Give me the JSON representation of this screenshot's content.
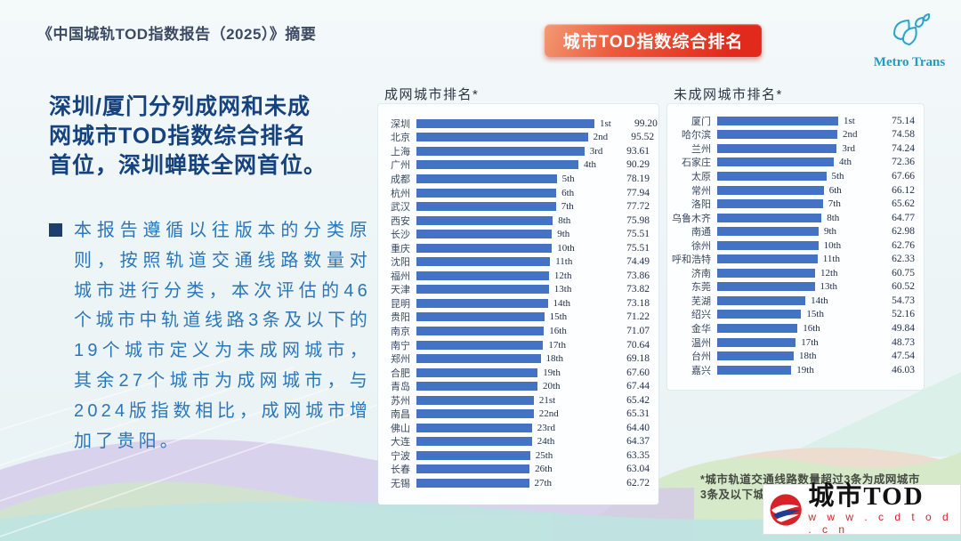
{
  "page": {
    "title": "《中国城轨TOD指数报告（2025）》摘要",
    "badge": "城市TOD指数综合排名",
    "metro_logo": "Metro Trans",
    "headline_lines": [
      "深圳/厦门分列成网和未成",
      "网城市TOD指数综合排名",
      "首位，深圳蝉联全网首位。"
    ],
    "body": "本报告遵循以往版本的分类原则，按照轨道交通线路数量对城市进行分类，本次评估的46个城市中轨道线路3条及以下的19个城市定义为未成网城市，其余27个城市为成网城市，与2024版指数相比，成网城市增加了贵阳。",
    "footnote_line1": "*城市轨道交通线路数量超过3条为成网城市",
    "footnote_line2": "3条及以下城市",
    "brand": {
      "name": "城市TOD",
      "url": "w w w . c d t o d . c n"
    }
  },
  "chart_data": [
    {
      "type": "bar",
      "orientation": "horizontal",
      "title": "成网城市排名*",
      "bar_color": "#4472c4",
      "xlim": [
        0,
        100
      ],
      "categories": [
        "深圳",
        "北京",
        "上海",
        "广州",
        "成都",
        "杭州",
        "武汉",
        "西安",
        "长沙",
        "重庆",
        "沈阳",
        "福州",
        "天津",
        "昆明",
        "贵阳",
        "南京",
        "南宁",
        "郑州",
        "合肥",
        "青岛",
        "苏州",
        "南昌",
        "佛山",
        "大连",
        "宁波",
        "长春",
        "无锡"
      ],
      "values": [
        99.2,
        95.52,
        93.61,
        90.29,
        78.19,
        77.94,
        77.72,
        75.98,
        75.51,
        75.51,
        74.49,
        73.86,
        73.82,
        73.18,
        71.22,
        71.07,
        70.64,
        69.18,
        67.6,
        67.44,
        65.42,
        65.31,
        64.4,
        64.37,
        63.35,
        63.04,
        62.72
      ],
      "rank_labels": [
        "1st",
        "2nd",
        "3rd",
        "4th",
        "5th",
        "6th",
        "7th",
        "8th",
        "9th",
        "10th",
        "11th",
        "12th",
        "13th",
        "14th",
        "15th",
        "16th",
        "17th",
        "18th",
        "19th",
        "20th",
        "21st",
        "22nd",
        "23rd",
        "24th",
        "25th",
        "26th",
        "27th"
      ]
    },
    {
      "type": "bar",
      "orientation": "horizontal",
      "title": "未成网城市排名*",
      "bar_color": "#4472c4",
      "xlim": [
        0,
        80
      ],
      "categories": [
        "厦门",
        "哈尔滨",
        "兰州",
        "石家庄",
        "太原",
        "常州",
        "洛阳",
        "乌鲁木齐",
        "南通",
        "徐州",
        "呼和浩特",
        "济南",
        "东莞",
        "芜湖",
        "绍兴",
        "金华",
        "温州",
        "台州",
        "嘉兴"
      ],
      "values": [
        75.14,
        74.58,
        74.24,
        72.36,
        67.66,
        66.12,
        65.62,
        64.77,
        62.98,
        62.76,
        62.33,
        60.75,
        60.52,
        54.73,
        52.16,
        49.84,
        48.73,
        47.54,
        46.03
      ],
      "rank_labels": [
        "1st",
        "2nd",
        "3rd",
        "4th",
        "5th",
        "6th",
        "7th",
        "8th",
        "9th",
        "10th",
        "11th",
        "12th",
        "13th",
        "14th",
        "15th",
        "16th",
        "17th",
        "18th",
        "19th"
      ]
    }
  ]
}
